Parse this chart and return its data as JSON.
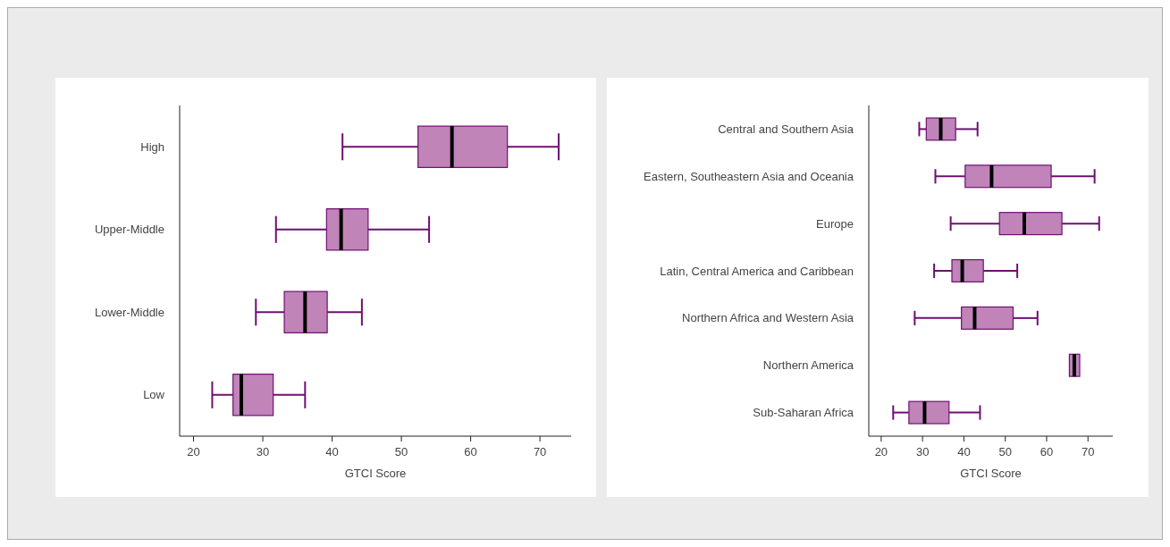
{
  "chart_data": [
    {
      "type": "box",
      "orientation": "horizontal",
      "xlabel": "GTCI Score",
      "xlim": [
        18,
        74.5
      ],
      "xticks": [
        20,
        30,
        40,
        50,
        60,
        70
      ],
      "categories": [
        "High",
        "Upper-Middle",
        "Lower-Middle",
        "Low"
      ],
      "series": [
        {
          "color": "#c084b8",
          "boxes": [
            {
              "low": 41.5,
              "q1": 52.4,
              "median": 57.3,
              "q3": 65.3,
              "high": 72.7
            },
            {
              "low": 31.9,
              "q1": 39.2,
              "median": 41.3,
              "q3": 45.2,
              "high": 54.0
            },
            {
              "low": 29.0,
              "q1": 33.1,
              "median": 36.1,
              "q3": 39.3,
              "high": 44.3
            },
            {
              "low": 22.7,
              "q1": 25.7,
              "median": 26.9,
              "q3": 31.5,
              "high": 36.1
            }
          ]
        }
      ]
    },
    {
      "type": "box",
      "orientation": "horizontal",
      "xlabel": "GTCI Score",
      "xlim": [
        17,
        76
      ],
      "xticks": [
        20,
        30,
        40,
        50,
        60,
        70
      ],
      "categories": [
        "Central and Southern Asia",
        "Eastern, Southeastern Asia and Oceania",
        "Europe",
        "Latin, Central America and Caribbean",
        "Northern Africa and Western Asia",
        "Northern America",
        "Sub-Saharan Africa"
      ],
      "series": [
        {
          "color": "#c084b8",
          "boxes": [
            {
              "low": 29.2,
              "q1": 30.9,
              "median": 34.4,
              "q3": 38.0,
              "high": 43.3
            },
            {
              "low": 33.1,
              "q1": 40.3,
              "median": 46.7,
              "q3": 61.1,
              "high": 71.6
            },
            {
              "low": 36.8,
              "q1": 48.6,
              "median": 54.6,
              "q3": 63.7,
              "high": 72.7
            },
            {
              "low": 32.8,
              "q1": 37.1,
              "median": 39.6,
              "q3": 44.7,
              "high": 52.9
            },
            {
              "low": 28.1,
              "q1": 39.4,
              "median": 42.6,
              "q3": 51.9,
              "high": 57.8
            },
            {
              "low": 65.5,
              "q1": 65.5,
              "median": 66.7,
              "q3": 68.0,
              "high": 68.0
            },
            {
              "low": 22.9,
              "q1": 26.7,
              "median": 30.5,
              "q3": 36.4,
              "high": 43.9
            }
          ]
        }
      ]
    }
  ]
}
